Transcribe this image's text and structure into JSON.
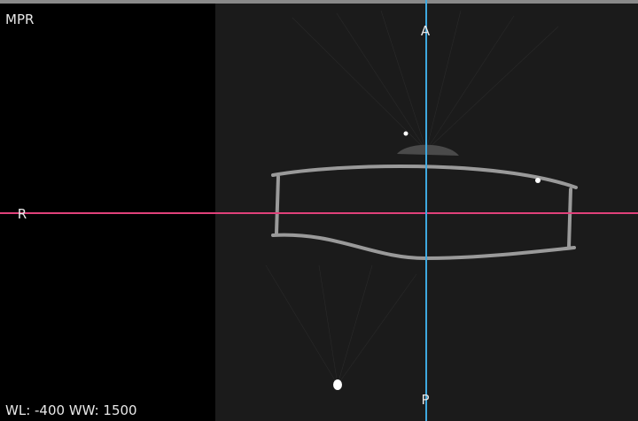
{
  "viewport": {
    "mode_label": "MPR",
    "orientation": {
      "top": "A",
      "left": "R",
      "bottom": "P"
    },
    "window_info": "WL: -400 WW: 1500"
  }
}
